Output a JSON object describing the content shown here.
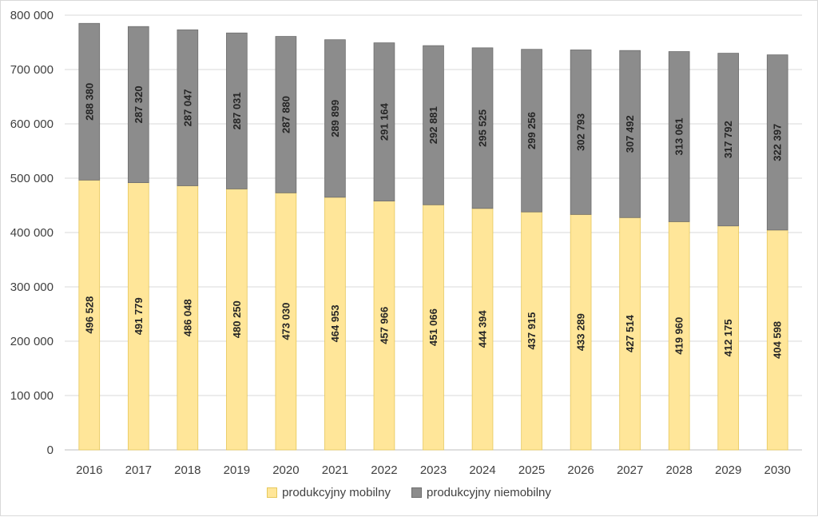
{
  "chart_data": {
    "type": "bar",
    "stacked": true,
    "categories": [
      "2016",
      "2017",
      "2018",
      "2019",
      "2020",
      "2021",
      "2022",
      "2023",
      "2024",
      "2025",
      "2026",
      "2027",
      "2028",
      "2029",
      "2030"
    ],
    "series": [
      {
        "name": "produkcyjny mobilny",
        "color": "#ffe699",
        "values": [
          496528,
          491779,
          486048,
          480250,
          473030,
          464953,
          457966,
          451066,
          444394,
          437915,
          433289,
          427514,
          419960,
          412175,
          404598
        ],
        "labels": [
          "496 528",
          "491 779",
          "486 048",
          "480 250",
          "473 030",
          "464 953",
          "457 966",
          "451 066",
          "444 394",
          "437 915",
          "433 289",
          "427 514",
          "419 960",
          "412 175",
          "404 598"
        ]
      },
      {
        "name": "produkcyjny niemobilny",
        "color": "#8c8c8c",
        "values": [
          288380,
          287320,
          287047,
          287031,
          287880,
          289899,
          291164,
          292881,
          295525,
          299256,
          302793,
          307492,
          313061,
          317792,
          322397
        ],
        "labels": [
          "288 380",
          "287 320",
          "287 047",
          "287 031",
          "287 880",
          "289 899",
          "291 164",
          "292 881",
          "295 525",
          "299 256",
          "302 793",
          "307 492",
          "313 061",
          "317 792",
          "322 397"
        ]
      }
    ],
    "ylim": [
      0,
      800000
    ],
    "yticks": [
      0,
      100000,
      200000,
      300000,
      400000,
      500000,
      600000,
      700000,
      800000
    ],
    "ytick_labels": [
      "0",
      "100 000",
      "200 000",
      "300 000",
      "400 000",
      "500 000",
      "600 000",
      "700 000",
      "800 000"
    ],
    "grid": true,
    "legend_position": "bottom"
  }
}
